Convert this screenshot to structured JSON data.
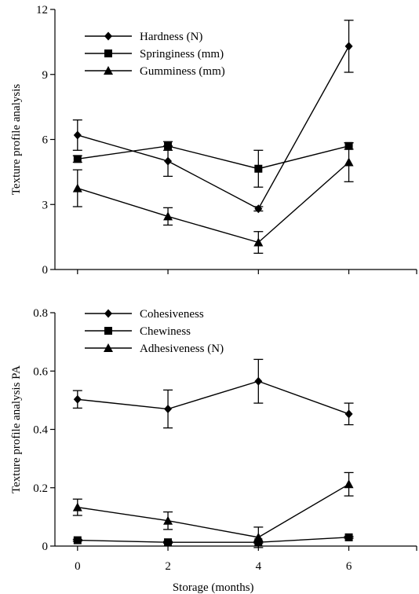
{
  "chart_data": [
    {
      "type": "line",
      "xlabel": "",
      "ylabel": "Texture profile analysis",
      "ylim": [
        0,
        12
      ],
      "yticks": [
        "0",
        "3",
        "6",
        "9",
        "12"
      ],
      "xlim": [
        -0.5,
        7.5
      ],
      "x": [
        0,
        2,
        4,
        6
      ],
      "legend": "top-left",
      "series": [
        {
          "name": "Hardness (N)",
          "marker": "diamond",
          "values": [
            6.2,
            5.0,
            2.8,
            10.3
          ],
          "errors": [
            0.7,
            0.7,
            0.1,
            1.2
          ]
        },
        {
          "name": "Springiness (mm)",
          "marker": "square",
          "values": [
            5.1,
            5.7,
            4.65,
            5.7
          ],
          "errors": [
            0.15,
            0.2,
            0.85,
            0.15
          ]
        },
        {
          "name": "Gumminess (mm)",
          "marker": "triangle",
          "values": [
            3.75,
            2.45,
            1.25,
            4.95
          ],
          "errors": [
            0.85,
            0.4,
            0.5,
            0.9
          ]
        }
      ]
    },
    {
      "type": "line",
      "xlabel": "Storage (months)",
      "ylabel": "Texture profile analysis PA",
      "ylim": [
        0,
        0.8
      ],
      "yticks": [
        "0",
        "0.2",
        "0.4",
        "0.6",
        "0.8"
      ],
      "xlim": [
        -0.5,
        7.5
      ],
      "x": [
        0,
        2,
        4,
        6
      ],
      "xticks": [
        "0",
        "2",
        "4",
        "6"
      ],
      "legend": "top-left",
      "series": [
        {
          "name": "Cohesiveness",
          "marker": "diamond",
          "values": [
            0.503,
            0.47,
            0.565,
            0.453
          ],
          "errors": [
            0.03,
            0.065,
            0.075,
            0.037
          ]
        },
        {
          "name": "Chewiness",
          "marker": "square",
          "values": [
            0.02,
            0.013,
            0.013,
            0.03
          ],
          "errors": [
            0.003,
            0.003,
            0.003,
            0.003
          ]
        },
        {
          "name": "Adhesiveness (N)",
          "marker": "triangle",
          "values": [
            0.133,
            0.087,
            0.03,
            0.212
          ],
          "errors": [
            0.028,
            0.03,
            0.035,
            0.04
          ]
        }
      ]
    }
  ]
}
